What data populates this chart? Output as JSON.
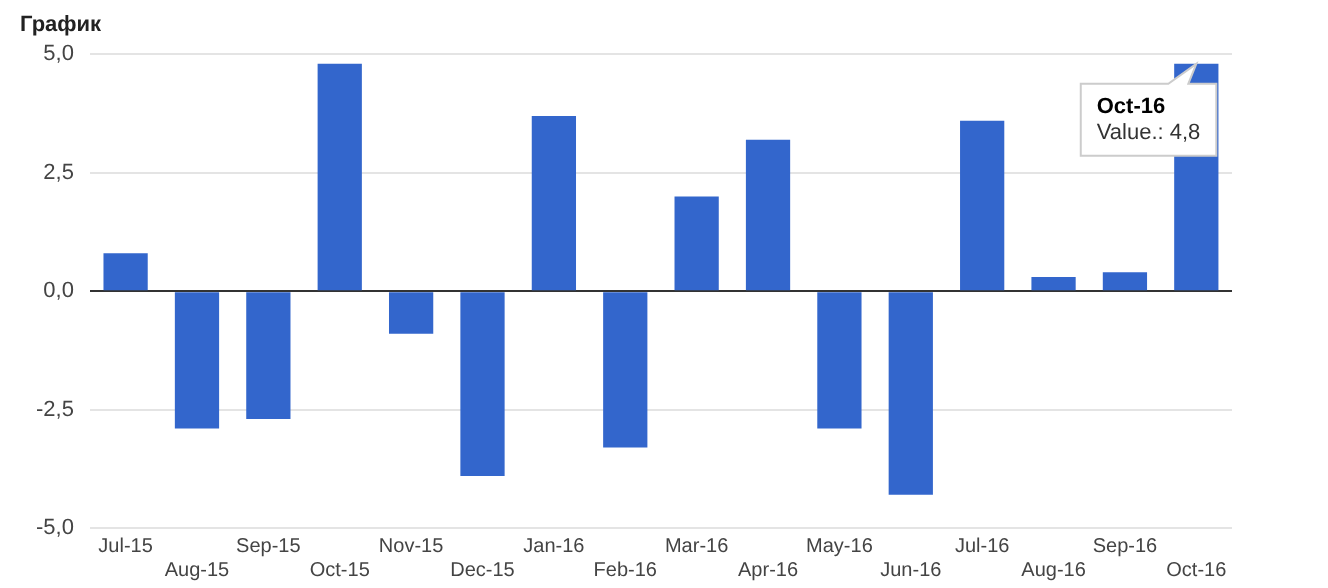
{
  "chart_data": {
    "type": "bar",
    "title": "График",
    "categories": [
      "Jul-15",
      "Aug-15",
      "Sep-15",
      "Oct-15",
      "Nov-15",
      "Dec-15",
      "Jan-16",
      "Feb-16",
      "Mar-16",
      "Apr-16",
      "May-16",
      "Jun-16",
      "Jul-16",
      "Aug-16",
      "Sep-16",
      "Oct-16"
    ],
    "values": [
      0.8,
      -2.9,
      -2.7,
      4.8,
      -0.9,
      -3.9,
      3.7,
      -3.3,
      2.0,
      3.2,
      -2.9,
      -4.3,
      3.6,
      0.3,
      0.4,
      4.8
    ],
    "color": "#3366cc",
    "ylim": [
      -5,
      5
    ],
    "yticks": [
      {
        "value": -5,
        "label": "-5,0"
      },
      {
        "value": -2.5,
        "label": "-2,5"
      },
      {
        "value": 0,
        "label": "0,0"
      },
      {
        "value": 2.5,
        "label": "2,5"
      },
      {
        "value": 5,
        "label": "5,0"
      }
    ],
    "grid": true,
    "legend": false,
    "annotations": [
      {
        "text": "Oct-16\nValue.: 4,8",
        "x": "Oct-16",
        "y": 4.8
      }
    ]
  }
}
